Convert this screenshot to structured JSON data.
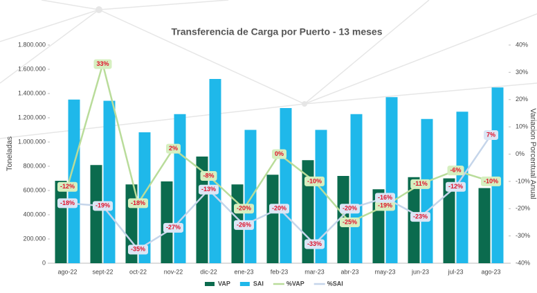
{
  "chart_data": {
    "type": "combo",
    "title": "Transferencia de Carga por Puerto - 13 meses",
    "y_label": "Toneladas",
    "y2_label": "Variacion Porcentual Anual",
    "categories": [
      "ago-22",
      "sept-22",
      "oct-22",
      "nov-22",
      "dic-22",
      "ene-23",
      "feb-23",
      "mar-23",
      "abr-23",
      "may-23",
      "jun-23",
      "jul-23",
      "ago-23"
    ],
    "ylim": [
      0,
      1800000
    ],
    "yticks": [
      0,
      {
        "value": 200000,
        "label": "200.000"
      },
      {
        "value": 400000,
        "label": "400.000"
      },
      {
        "value": 600000,
        "label": "600.000"
      },
      {
        "value": 800000,
        "label": "800.000"
      },
      {
        "value": 1000000,
        "label": "1.000.000"
      },
      {
        "value": 1200000,
        "label": "1.200.000"
      },
      {
        "value": 1400000,
        "label": "1.400.000"
      },
      {
        "value": 1600000,
        "label": "1.600.000"
      },
      {
        "value": 1800000,
        "label": "1.800.000"
      }
    ],
    "y2lim": [
      -40,
      40
    ],
    "y2ticks": [
      {
        "value": -40,
        "label": "-40%"
      },
      {
        "value": -30,
        "label": "-30%"
      },
      {
        "value": -20,
        "label": "-20%"
      },
      {
        "value": -10,
        "label": "-10%"
      },
      {
        "value": 0,
        "label": "0%"
      },
      {
        "value": 10,
        "label": "10%"
      },
      {
        "value": 20,
        "label": "20%"
      },
      {
        "value": 30,
        "label": "30%"
      },
      {
        "value": 40,
        "label": "40%"
      }
    ],
    "series": [
      {
        "name": "VAP",
        "type": "bar",
        "color": "#0b6b4e",
        "values": [
          680000,
          810000,
          650000,
          675000,
          880000,
          650000,
          730000,
          850000,
          720000,
          610000,
          710000,
          700000,
          620000
        ]
      },
      {
        "name": "SAI",
        "type": "bar",
        "color": "#1fb8ea",
        "values": [
          1350000,
          1340000,
          1080000,
          1230000,
          1520000,
          1100000,
          1280000,
          1100000,
          1230000,
          1370000,
          1190000,
          1250000,
          1450000
        ]
      },
      {
        "name": "%VAP",
        "type": "line",
        "axis": "y2",
        "color": "#b9dc9a",
        "label_bg": "#d6efc0",
        "values": [
          -12,
          33,
          -18,
          2,
          -8,
          -20,
          0,
          -10,
          -25,
          -19,
          -11,
          -6,
          -10
        ],
        "value_labels": [
          "-12%",
          "33%",
          "-18%",
          "2%",
          "-8%",
          "-20%",
          "0%",
          "-10%",
          "-25%",
          "-19%",
          "-11%",
          "-6%",
          "-10%"
        ]
      },
      {
        "name": "%SAI",
        "type": "line",
        "axis": "y2",
        "color": "#c5d5ea",
        "label_bg": "#dbe6f5",
        "values": [
          -18,
          -19,
          -35,
          -27,
          -13,
          -26,
          -20,
          -33,
          -20,
          -16,
          -23,
          -12,
          7
        ],
        "value_labels": [
          "-18%",
          "-19%",
          "-35%",
          "-27%",
          "-13%",
          "-26%",
          "-20%",
          "-33%",
          "-20%",
          "-16%",
          "-23%",
          "-12%",
          "7%"
        ]
      }
    ]
  }
}
